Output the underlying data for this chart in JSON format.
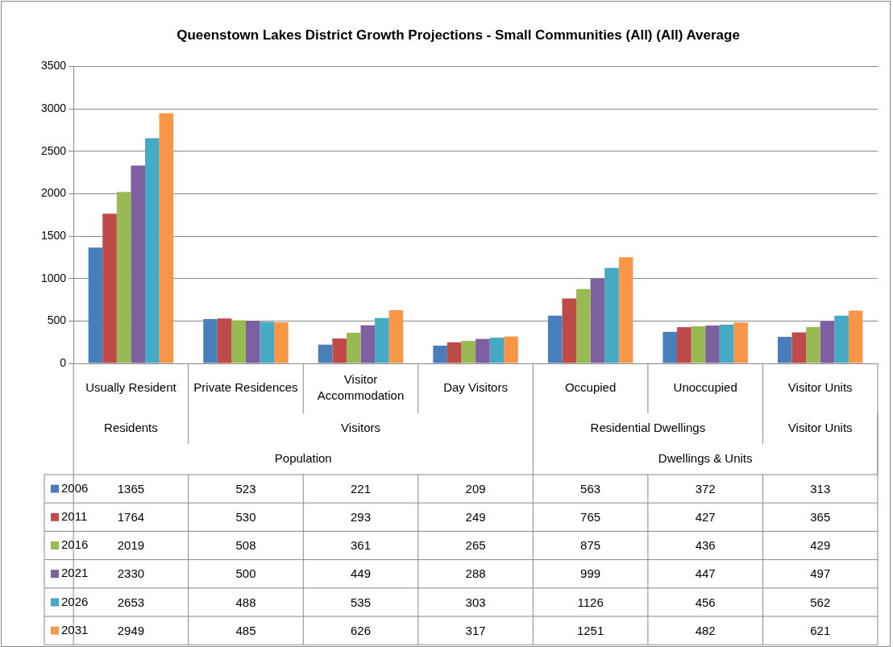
{
  "chart_data": {
    "type": "bar",
    "title": "Queenstown Lakes District Growth Projections - Small Communities (All) (All) Average",
    "categories": [
      "Usually Resident",
      "Private Residences",
      "Visitor Accommodation",
      "Day Visitors",
      "Occupied",
      "Unoccupied",
      "Visitor Units"
    ],
    "series": [
      {
        "name": "2006",
        "color": "#4a7ebb",
        "values": [
          1365,
          523,
          221,
          209,
          563,
          372,
          313
        ]
      },
      {
        "name": "2011",
        "color": "#be4b48",
        "values": [
          1764,
          530,
          293,
          249,
          765,
          427,
          365
        ]
      },
      {
        "name": "2016",
        "color": "#98b954",
        "values": [
          2019,
          508,
          361,
          265,
          875,
          436,
          429
        ]
      },
      {
        "name": "2021",
        "color": "#7d60a0",
        "values": [
          2330,
          500,
          449,
          288,
          999,
          447,
          497
        ]
      },
      {
        "name": "2026",
        "color": "#46aac5",
        "values": [
          2653,
          488,
          535,
          303,
          1126,
          456,
          562
        ]
      },
      {
        "name": "2031",
        "color": "#f79646",
        "values": [
          2949,
          485,
          626,
          317,
          1251,
          482,
          621
        ]
      }
    ],
    "annotations": [
      "Residents",
      "Visitors",
      "Residential Dwellings",
      "Visitor Units",
      "Population",
      "Dwellings & Units"
    ],
    "ylim": [
      0,
      3500
    ],
    "yticks": [
      0,
      500,
      1000,
      1500,
      2000,
      2500,
      3000,
      3500
    ],
    "grid": "y",
    "legend": "bottom left",
    "data_labels": true
  }
}
